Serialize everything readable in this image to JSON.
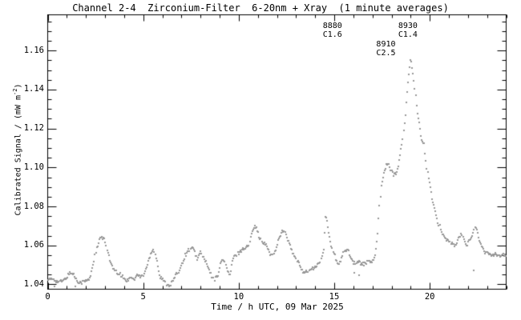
{
  "chart_data": {
    "type": "scatter",
    "title": "Channel 2-4  Zirconium-Filter  6-20nm + Xray  (1 minute averages)",
    "xlabel": "Time / h UTC, 09 Mar 2025",
    "ylabel": "Calibrated Signal / (mW m^-2)",
    "ylabel_parts": {
      "prefix": "Calibrated Signal / (mW m",
      "sup": "-2",
      "suffix": ")"
    },
    "xlim": [
      0,
      24
    ],
    "ylim": [
      1.0375,
      1.1784
    ],
    "x_major_ticks": [
      0,
      5,
      10,
      15,
      20
    ],
    "x_minor_step": 1,
    "y_major_ticks": [
      1.04,
      1.06,
      1.08,
      1.1,
      1.12,
      1.14,
      1.16
    ],
    "y_minor_step": 0.005,
    "grid": false,
    "point_color": "#999999",
    "axis_color": "#000000",
    "background": "#ffffff",
    "annotations": [
      {
        "flare_id": "8880",
        "goes_class": "C1.6",
        "t": 14.4,
        "row": 0
      },
      {
        "flare_id": "8910",
        "goes_class": "C2.5",
        "t": 17.2,
        "row": 1
      },
      {
        "flare_id": "8930",
        "goes_class": "C1.4",
        "t": 18.35,
        "row": 0
      }
    ],
    "series": [
      {
        "name": "Channel 2-4 Zirconium 6-20nm + Xray",
        "points": [
          [
            0.0,
            1.0432
          ],
          [
            0.15,
            1.0422
          ],
          [
            0.3,
            1.0428
          ],
          [
            0.5,
            1.0415
          ],
          [
            0.7,
            1.0412
          ],
          [
            0.9,
            1.0425
          ],
          [
            1.05,
            1.0442
          ],
          [
            1.2,
            1.0465
          ],
          [
            1.35,
            1.0448
          ],
          [
            1.55,
            1.0418
          ],
          [
            1.75,
            1.0408
          ],
          [
            1.95,
            1.0415
          ],
          [
            2.1,
            1.0422
          ],
          [
            2.2,
            1.0428
          ],
          [
            2.3,
            1.0468
          ],
          [
            2.4,
            1.0512
          ],
          [
            2.55,
            1.0578
          ],
          [
            2.7,
            1.0625
          ],
          [
            2.8,
            1.0642
          ],
          [
            2.9,
            1.0636
          ],
          [
            3.0,
            1.0622
          ],
          [
            3.15,
            1.0565
          ],
          [
            3.3,
            1.0505
          ],
          [
            3.45,
            1.0476
          ],
          [
            3.6,
            1.0462
          ],
          [
            3.8,
            1.0448
          ],
          [
            4.0,
            1.0431
          ],
          [
            4.15,
            1.0415
          ],
          [
            4.35,
            1.0443
          ],
          [
            4.5,
            1.0422
          ],
          [
            4.7,
            1.0451
          ],
          [
            4.85,
            1.0438
          ],
          [
            5.0,
            1.0448
          ],
          [
            5.15,
            1.0482
          ],
          [
            5.3,
            1.0528
          ],
          [
            5.45,
            1.0572
          ],
          [
            5.55,
            1.0578
          ],
          [
            5.7,
            1.0532
          ],
          [
            5.85,
            1.0442
          ],
          [
            6.0,
            1.0428
          ],
          [
            6.2,
            1.0402
          ],
          [
            6.4,
            1.0395
          ],
          [
            6.6,
            1.0425
          ],
          [
            6.8,
            1.0458
          ],
          [
            7.0,
            1.0502
          ],
          [
            7.2,
            1.0548
          ],
          [
            7.4,
            1.0578
          ],
          [
            7.55,
            1.0588
          ],
          [
            7.7,
            1.0562
          ],
          [
            7.85,
            1.0528
          ],
          [
            8.0,
            1.0565
          ],
          [
            8.15,
            1.0538
          ],
          [
            8.3,
            1.0508
          ],
          [
            8.5,
            1.0462
          ],
          [
            8.7,
            1.0422
          ],
          [
            8.9,
            1.0448
          ],
          [
            9.1,
            1.0522
          ],
          [
            9.25,
            1.0528
          ],
          [
            9.4,
            1.0462
          ],
          [
            9.55,
            1.0448
          ],
          [
            9.7,
            1.0532
          ],
          [
            9.85,
            1.0548
          ],
          [
            10.0,
            1.0562
          ],
          [
            10.2,
            1.0582
          ],
          [
            10.4,
            1.0588
          ],
          [
            10.55,
            1.0602
          ],
          [
            10.7,
            1.0682
          ],
          [
            10.85,
            1.0705
          ],
          [
            11.0,
            1.0672
          ],
          [
            11.1,
            1.0638
          ],
          [
            11.25,
            1.0612
          ],
          [
            11.4,
            1.0605
          ],
          [
            11.55,
            1.0582
          ],
          [
            11.7,
            1.0548
          ],
          [
            11.85,
            1.0558
          ],
          [
            12.0,
            1.0605
          ],
          [
            12.15,
            1.0648
          ],
          [
            12.3,
            1.0675
          ],
          [
            12.45,
            1.0658
          ],
          [
            12.6,
            1.0618
          ],
          [
            12.8,
            1.0568
          ],
          [
            13.0,
            1.0528
          ],
          [
            13.2,
            1.0495
          ],
          [
            13.35,
            1.0468
          ],
          [
            13.5,
            1.0462
          ],
          [
            13.7,
            1.0472
          ],
          [
            13.9,
            1.0482
          ],
          [
            14.1,
            1.0495
          ],
          [
            14.3,
            1.0522
          ],
          [
            14.45,
            1.0585
          ],
          [
            14.55,
            1.0765
          ],
          [
            14.65,
            1.0702
          ],
          [
            14.8,
            1.0618
          ],
          [
            14.95,
            1.0568
          ],
          [
            15.1,
            1.0522
          ],
          [
            15.25,
            1.0498
          ],
          [
            15.4,
            1.0532
          ],
          [
            15.55,
            1.0578
          ],
          [
            15.7,
            1.0582
          ],
          [
            15.85,
            1.0545
          ],
          [
            16.0,
            1.0512
          ],
          [
            16.2,
            1.0515
          ],
          [
            16.4,
            1.0508
          ],
          [
            16.6,
            1.0505
          ],
          [
            16.8,
            1.0515
          ],
          [
            17.0,
            1.052
          ],
          [
            17.15,
            1.0542
          ],
          [
            17.25,
            1.0625
          ],
          [
            17.35,
            1.0775
          ],
          [
            17.45,
            1.09
          ],
          [
            17.6,
            1.098
          ],
          [
            17.75,
            1.1015
          ],
          [
            17.85,
            1.1025
          ],
          [
            17.95,
            1.0988
          ],
          [
            18.1,
            1.0962
          ],
          [
            18.25,
            1.0968
          ],
          [
            18.4,
            1.103
          ],
          [
            18.55,
            1.112
          ],
          [
            18.7,
            1.125
          ],
          [
            18.85,
            1.143
          ],
          [
            18.95,
            1.1525
          ],
          [
            19.0,
            1.1555
          ],
          [
            19.1,
            1.15
          ],
          [
            19.2,
            1.1415
          ],
          [
            19.35,
            1.1285
          ],
          [
            19.45,
            1.1215
          ],
          [
            19.55,
            1.1142
          ],
          [
            19.7,
            1.1128
          ],
          [
            19.8,
            1.103
          ],
          [
            19.95,
            1.0935
          ],
          [
            20.1,
            1.0852
          ],
          [
            20.25,
            1.0785
          ],
          [
            20.4,
            1.0725
          ],
          [
            20.55,
            1.069
          ],
          [
            20.7,
            1.0655
          ],
          [
            20.85,
            1.0632
          ],
          [
            21.0,
            1.062
          ],
          [
            21.2,
            1.0605
          ],
          [
            21.35,
            1.0598
          ],
          [
            21.5,
            1.0632
          ],
          [
            21.65,
            1.0655
          ],
          [
            21.8,
            1.0628
          ],
          [
            21.95,
            1.0602
          ],
          [
            22.1,
            1.0628
          ],
          [
            22.25,
            1.0658
          ],
          [
            22.4,
            1.0698
          ],
          [
            22.55,
            1.0645
          ],
          [
            22.7,
            1.0595
          ],
          [
            22.9,
            1.056
          ],
          [
            23.05,
            1.0565
          ],
          [
            23.25,
            1.0548
          ],
          [
            23.45,
            1.0562
          ],
          [
            23.65,
            1.0545
          ],
          [
            23.85,
            1.0552
          ],
          [
            24.0,
            1.0545
          ]
        ]
      }
    ],
    "outliers": [
      [
        0.35,
        1.0388
      ],
      [
        1.45,
        1.0388
      ],
      [
        16.05,
        1.046
      ],
      [
        16.3,
        1.0447
      ],
      [
        22.3,
        1.047
      ]
    ]
  }
}
